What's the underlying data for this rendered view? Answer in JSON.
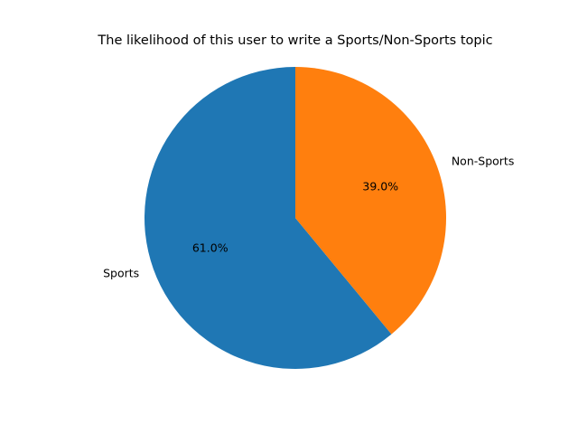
{
  "chart_data": {
    "type": "pie",
    "title": "The likelihood of this user to write a Sports/Non-Sports topic",
    "start_angle_deg": 90,
    "direction": "counterclockwise",
    "slices": [
      {
        "label": "Sports",
        "value": 61.0,
        "pct_text": "61.0%",
        "color": "#1f77b4"
      },
      {
        "label": "Non-Sports",
        "value": 39.0,
        "pct_text": "39.0%",
        "color": "#ff7f0e"
      }
    ]
  }
}
